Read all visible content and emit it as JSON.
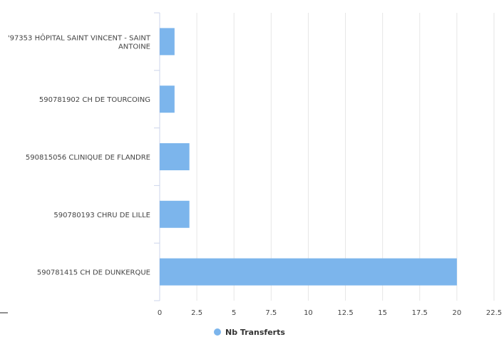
{
  "chart_data": {
    "type": "bar",
    "orientation": "horizontal",
    "categories": [
      [
        "'97353 HÔPITAL SAINT VINCENT - SAINT",
        "ANTOINE"
      ],
      [
        "590781902 CH DE TOURCOING"
      ],
      [
        "590815056 CLINIQUE DE FLANDRE"
      ],
      [
        "590780193 CHRU DE LILLE"
      ],
      [
        "590781415 CH DE DUNKERQUE"
      ]
    ],
    "series": [
      {
        "name": "Nb Transferts",
        "values": [
          1,
          1,
          2,
          2,
          20
        ]
      }
    ],
    "xlim": [
      0,
      22.5
    ],
    "xticks": [
      "0",
      "2.5",
      "5",
      "7.5",
      "10",
      "12.5",
      "15",
      "17.5",
      "20",
      "22.5"
    ],
    "grid": true,
    "legend": "bottom-center",
    "colors": {
      "bar": "#7cb5ec",
      "grid": "#e6e6e6",
      "axis": "#ccd6eb"
    }
  }
}
